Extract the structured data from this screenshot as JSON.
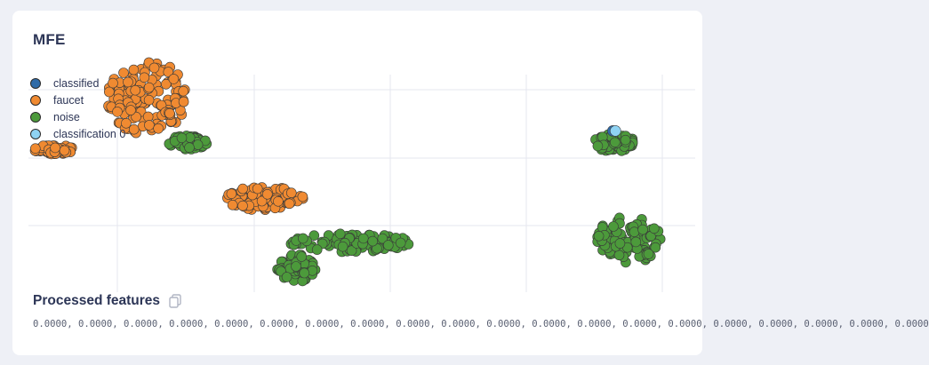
{
  "card": {
    "title": "MFE"
  },
  "legend": {
    "items": [
      {
        "label": "classified",
        "color": "#2f6ba8"
      },
      {
        "label": "faucet",
        "color": "#f08a31"
      },
      {
        "label": "noise",
        "color": "#4c9a3b"
      },
      {
        "label": "classification 0",
        "color": "#8fd3f3"
      }
    ]
  },
  "processed": {
    "title": "Processed features",
    "copy_icon": "copy-icon",
    "values": "0.0000, 0.0000, 0.0000, 0.0000, 0.0000, 0.0000, 0.0000, 0.0000, 0.0000, 0.0000, 0.0000, 0.0000, 0.0000, 0.0000, 0.0000, 0.0000, 0.0000, 0.0000, 0.0000, 0.0000"
  },
  "chart_data": {
    "type": "scatter",
    "grid": true,
    "legend_position": "top-left",
    "series": [
      {
        "name": "faucet",
        "clusters": [
          {
            "cx": 0.05,
            "cy": 0.36,
            "rx": 0.03,
            "ry": 0.02
          },
          {
            "cx": 0.19,
            "cy": 0.14,
            "rx": 0.06,
            "ry": 0.16
          },
          {
            "cx": 0.36,
            "cy": 0.57,
            "rx": 0.06,
            "ry": 0.05
          }
        ]
      },
      {
        "name": "noise",
        "clusters": [
          {
            "cx": 0.25,
            "cy": 0.33,
            "rx": 0.03,
            "ry": 0.03
          },
          {
            "cx": 0.49,
            "cy": 0.76,
            "rx": 0.09,
            "ry": 0.04
          },
          {
            "cx": 0.41,
            "cy": 0.87,
            "rx": 0.03,
            "ry": 0.06
          },
          {
            "cx": 0.88,
            "cy": 0.33,
            "rx": 0.03,
            "ry": 0.04
          },
          {
            "cx": 0.9,
            "cy": 0.75,
            "rx": 0.05,
            "ry": 0.1
          }
        ]
      },
      {
        "name": "classified",
        "points": [
          {
            "x": 0.878,
            "y": 0.28
          }
        ]
      },
      {
        "name": "classification 0",
        "points": [
          {
            "x": 0.882,
            "y": 0.28
          }
        ]
      }
    ]
  }
}
